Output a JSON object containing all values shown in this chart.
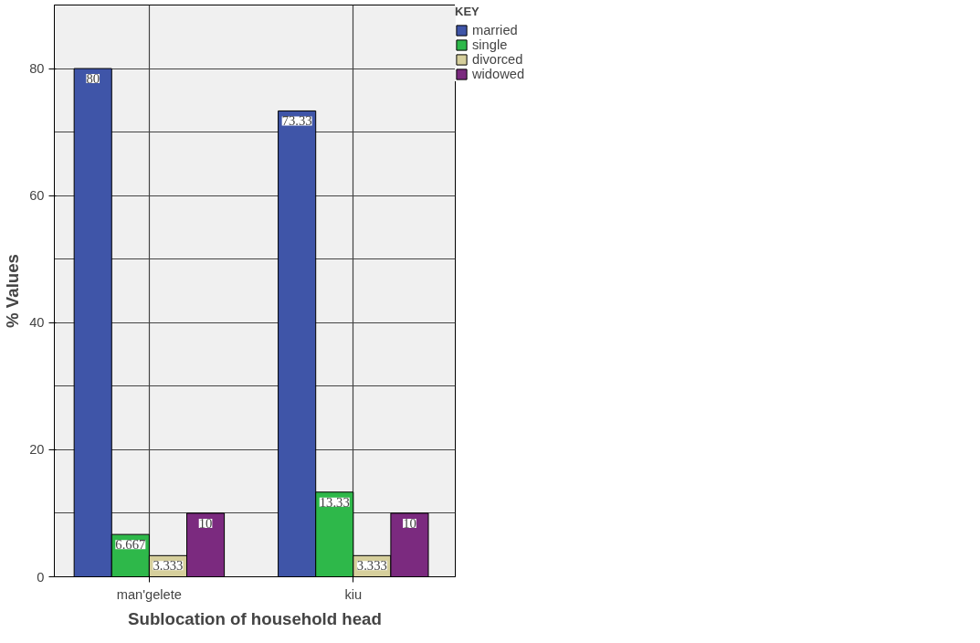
{
  "chart_data": {
    "type": "bar",
    "xlabel": "Sublocation of household head",
    "ylabel": "% Values",
    "legend_title": "KEY",
    "categories": [
      "man'gelete",
      "kiu"
    ],
    "series": [
      {
        "name": "married",
        "color": "#3f55a8",
        "values": [
          80,
          73.33
        ]
      },
      {
        "name": "single",
        "color": "#2eb84a",
        "values": [
          6.667,
          13.33
        ]
      },
      {
        "name": "divorced",
        "color": "#d6cf9c",
        "values": [
          3.333,
          3.333
        ]
      },
      {
        "name": "widowed",
        "color": "#7b2a7f",
        "values": [
          10,
          10
        ]
      }
    ],
    "ylim": [
      0,
      90
    ],
    "yticks": [
      0,
      20,
      40,
      60,
      80
    ],
    "grid": true,
    "legend": "top right",
    "data_labels": true
  }
}
